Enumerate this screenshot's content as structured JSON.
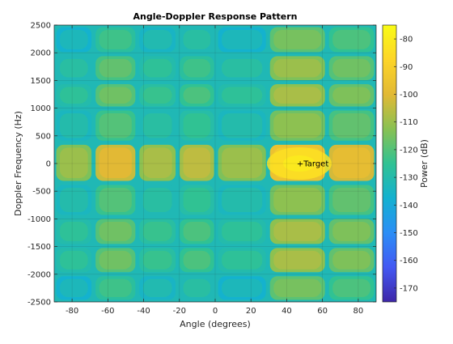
{
  "chart_data": {
    "type": "heatmap",
    "title": "Angle-Doppler Response Pattern",
    "xlabel": "Angle (degrees)",
    "ylabel": "Doppler Frequency (Hz)",
    "xlim": [
      -90,
      90
    ],
    "ylim": [
      -2500,
      2500
    ],
    "xticks": [
      -80,
      -60,
      -40,
      -20,
      0,
      20,
      40,
      60,
      80
    ],
    "yticks": [
      -2500,
      -2000,
      -1500,
      -1000,
      -500,
      0,
      500,
      1000,
      1500,
      2000,
      2500
    ],
    "grid": true,
    "colorbar": {
      "label": "Power (dB)",
      "range": [
        -175,
        -75
      ],
      "ticks": [
        -80,
        -90,
        -100,
        -110,
        -120,
        -130,
        -140,
        -150,
        -160,
        -170
      ],
      "colormap": "parula",
      "stops": [
        "#3e26a8",
        "#4358f3",
        "#2b8ef6",
        "#13b1d0",
        "#30c293",
        "#89c152",
        "#e2b935",
        "#fdd528",
        "#f9fb15"
      ]
    },
    "x_bands": [
      {
        "center": -80,
        "level": -110
      },
      {
        "center": -56,
        "level": -100
      },
      {
        "center": -31,
        "level": -108
      },
      {
        "center": -11,
        "level": -105
      },
      {
        "center": 12,
        "level": -110
      },
      {
        "center": 47,
        "level": -92
      },
      {
        "center": 78,
        "level": -98
      }
    ],
    "y_bands": [
      {
        "center": 2250,
        "level": -115
      },
      {
        "center": 1700,
        "level": -110
      },
      {
        "center": 1240,
        "level": -108
      },
      {
        "center": 750,
        "level": -112
      },
      {
        "center": 0,
        "level": -92
      },
      {
        "center": -700,
        "level": -112
      },
      {
        "center": -1230,
        "level": -108
      },
      {
        "center": -1750,
        "level": -108
      },
      {
        "center": -2250,
        "level": -115
      }
    ],
    "annotation": {
      "text": "+Target",
      "x": 47,
      "y": 0
    }
  }
}
